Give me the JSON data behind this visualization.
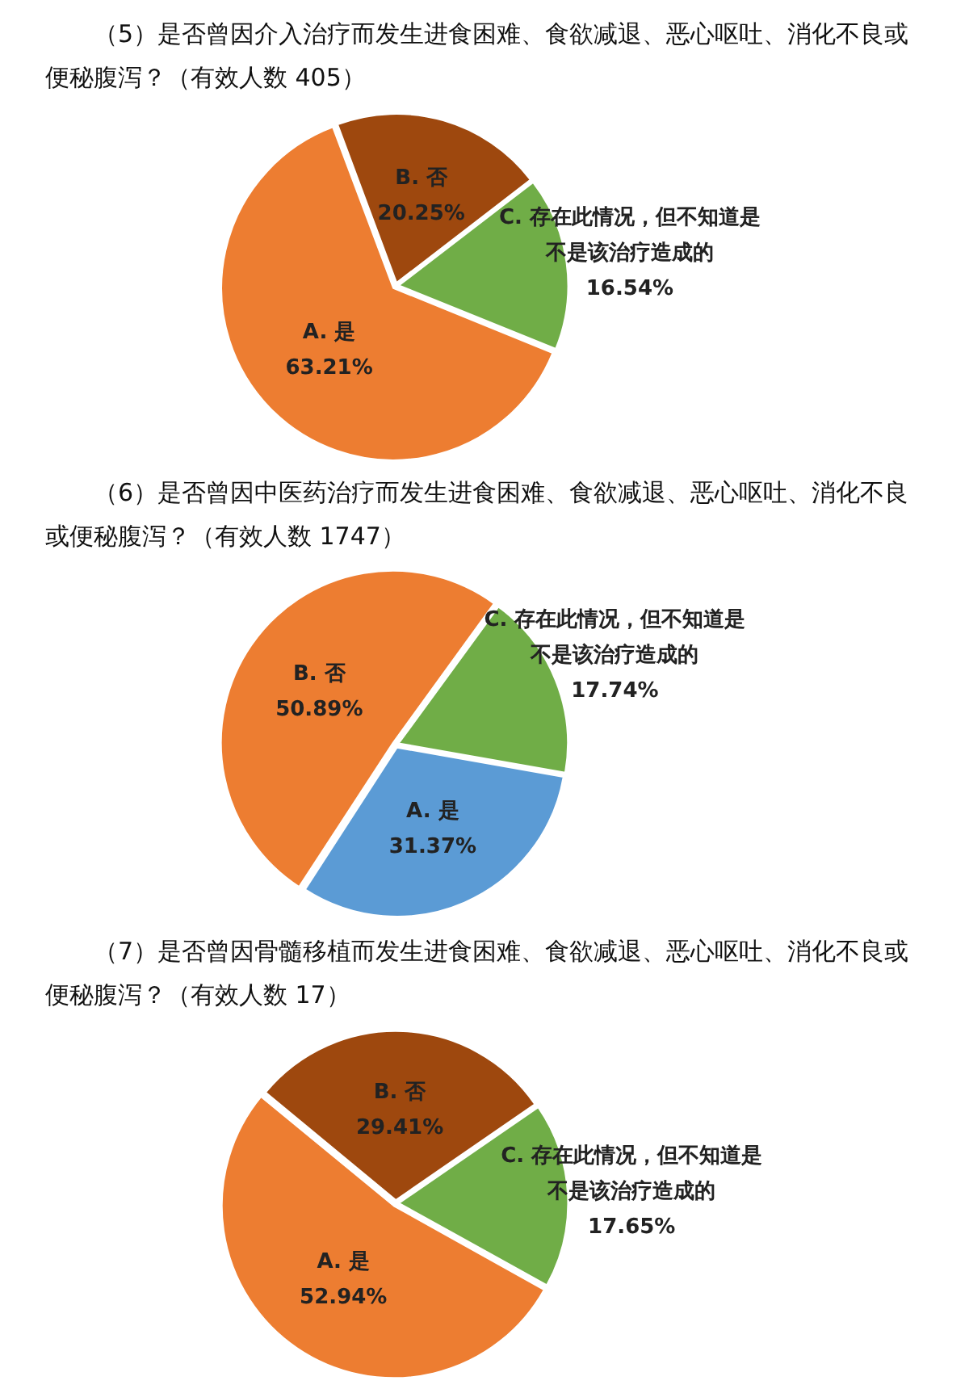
{
  "chart_data": [
    {
      "type": "pie",
      "title": "（5）是否曾因介入治疗而发生进食困难、食欲减退、恶心呕吐、消化不良或便秘腹泻？（有效人数 405）",
      "categories": [
        "A. 是",
        "B. 否",
        "C. 存在此情况，但不知道是不是该治疗造成的"
      ],
      "values": [
        63.21,
        20.25,
        16.54
      ],
      "colors": [
        "#ed7d31",
        "#9e480e",
        "#70ad47"
      ],
      "value_labels": [
        "63.21%",
        "20.25%",
        "16.54%"
      ]
    },
    {
      "type": "pie",
      "title": "（6）是否曾因中医药治疗而发生进食困难、食欲减退、恶心呕吐、消化不良或便秘腹泻？（有效人数 1747）",
      "categories": [
        "A. 是",
        "B. 否",
        "C. 存在此情况，但不知道是不是该治疗造成的"
      ],
      "values": [
        31.37,
        50.89,
        17.74
      ],
      "colors": [
        "#5b9bd5",
        "#ed7d31",
        "#70ad47"
      ],
      "value_labels": [
        "31.37%",
        "50.89%",
        "17.74%"
      ]
    },
    {
      "type": "pie",
      "title": "（7）是否曾因骨髓移植而发生进食困难、食欲减退、恶心呕吐、消化不良或便秘腹泻？（有效人数 17）",
      "categories": [
        "A. 是",
        "B. 否",
        "C. 存在此情况，但不知道是不是该治疗造成的"
      ],
      "values": [
        52.94,
        29.41,
        17.65
      ],
      "colors": [
        "#ed7d31",
        "#9e480e",
        "#70ad47"
      ],
      "value_labels": [
        "52.94%",
        "29.41%",
        "17.65%"
      ]
    }
  ]
}
